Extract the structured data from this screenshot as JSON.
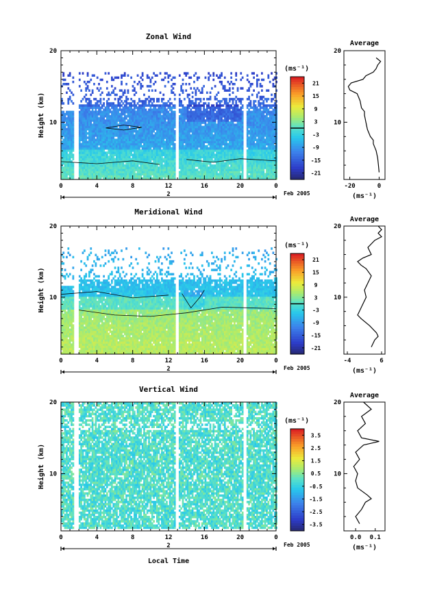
{
  "date_label": "Feb 2005",
  "day_label": "2",
  "xlabel": "Local Time",
  "chart_data": [
    {
      "type": "heatmap",
      "title": "Zonal Wind",
      "ylabel": "Height (km)",
      "xlim": [
        0,
        24
      ],
      "ylim": [
        2,
        20
      ],
      "x_ticks": [
        "0",
        "4",
        "8",
        "12",
        "16",
        "20",
        "0"
      ],
      "y_ticks": [
        "10",
        "20"
      ],
      "data_gaps_hours": [
        [
          1.4,
          1.9
        ],
        [
          12.7,
          13.1
        ],
        [
          20.3,
          20.6
        ]
      ],
      "colorbar": {
        "unit": "(ms⁻¹)",
        "ticks": [
          "21",
          "15",
          "9",
          "3",
          "-3",
          "-9",
          "-15",
          "-21"
        ],
        "range": [
          -24,
          24
        ],
        "marker": 0
      },
      "average": {
        "title": "Average",
        "xlabel": "(ms⁻¹)",
        "x_ticks": [
          "-20",
          "0"
        ],
        "xlim": [
          -24,
          4
        ],
        "y_ticks": [
          "10",
          "20"
        ],
        "profile": [
          [
            3,
            0
          ],
          [
            4,
            -0.5
          ],
          [
            5,
            -1
          ],
          [
            6,
            -2
          ],
          [
            7,
            -4
          ],
          [
            7.5,
            -4
          ],
          [
            8,
            -6
          ],
          [
            9,
            -8
          ],
          [
            10,
            -9
          ],
          [
            11,
            -10
          ],
          [
            11.5,
            -10
          ],
          [
            12,
            -12
          ],
          [
            13,
            -13
          ],
          [
            14,
            -15
          ],
          [
            14.5,
            -20
          ],
          [
            15,
            -21
          ],
          [
            15.5,
            -19
          ],
          [
            16,
            -11
          ],
          [
            16.5,
            -9
          ],
          [
            17,
            -4
          ],
          [
            17.5,
            -2
          ],
          [
            18,
            -1
          ],
          [
            18.5,
            1
          ],
          [
            19,
            -2
          ]
        ]
      }
    },
    {
      "type": "heatmap",
      "title": "Meridional Wind",
      "ylabel": "Height (km)",
      "xlim": [
        0,
        24
      ],
      "ylim": [
        2,
        20
      ],
      "x_ticks": [
        "0",
        "4",
        "8",
        "12",
        "16",
        "20",
        "0"
      ],
      "y_ticks": [
        "10",
        "20"
      ],
      "data_gaps_hours": [
        [
          1.4,
          1.9
        ],
        [
          12.7,
          13.1
        ],
        [
          20.3,
          20.6
        ]
      ],
      "colorbar": {
        "unit": "(ms⁻¹)",
        "ticks": [
          "21",
          "15",
          "9",
          "3",
          "-3",
          "-9",
          "-15",
          "-21"
        ],
        "range": [
          -24,
          24
        ],
        "marker": 0
      },
      "average": {
        "title": "Average",
        "xlabel": "(ms⁻¹)",
        "x_ticks": [
          "-4",
          "6"
        ],
        "xlim": [
          -5,
          7
        ],
        "y_ticks": [
          "10",
          "20"
        ],
        "profile": [
          [
            3,
            3
          ],
          [
            4,
            4
          ],
          [
            4.5,
            5
          ],
          [
            5,
            4.5
          ],
          [
            6,
            2.5
          ],
          [
            7,
            0
          ],
          [
            7.5,
            -1
          ],
          [
            8,
            -0.5
          ],
          [
            9,
            0.5
          ],
          [
            10,
            1.5
          ],
          [
            11,
            1
          ],
          [
            12,
            2
          ],
          [
            13,
            3
          ],
          [
            14,
            1.5
          ],
          [
            14.5,
            0
          ],
          [
            15,
            -1
          ],
          [
            15.5,
            0.5
          ],
          [
            16,
            3
          ],
          [
            17,
            2
          ],
          [
            18,
            4
          ],
          [
            18.5,
            6
          ],
          [
            19,
            5
          ],
          [
            19.5,
            6
          ],
          [
            20,
            5
          ]
        ]
      }
    },
    {
      "type": "heatmap",
      "title": "Vertical Wind",
      "ylabel": "Height (km)",
      "xlim": [
        0,
        24
      ],
      "ylim": [
        2,
        20
      ],
      "x_ticks": [
        "0",
        "4",
        "8",
        "12",
        "16",
        "20",
        "0"
      ],
      "y_ticks": [
        "10",
        "20"
      ],
      "data_gaps_hours": [
        [
          1.4,
          1.9
        ],
        [
          12.7,
          13.1
        ],
        [
          20.3,
          20.6
        ]
      ],
      "colorbar": {
        "unit": "(ms⁻¹)",
        "ticks": [
          "3.5",
          "2.5",
          "1.5",
          "0.5",
          "-0.5",
          "-1.5",
          "-2.5",
          "-3.5"
        ],
        "range": [
          -4,
          4
        ]
      },
      "average": {
        "title": "Average",
        "xlabel": "(ms⁻¹)",
        "x_ticks": [
          "0.0",
          "0.1"
        ],
        "xlim": [
          -0.06,
          0.15
        ],
        "y_ticks": [
          "10",
          "20"
        ],
        "profile": [
          [
            3,
            0.02
          ],
          [
            4,
            0.0
          ],
          [
            5,
            0.03
          ],
          [
            6,
            0.05
          ],
          [
            6.5,
            0.08
          ],
          [
            7,
            0.06
          ],
          [
            8,
            0.01
          ],
          [
            9,
            0.0
          ],
          [
            10,
            0.01
          ],
          [
            11,
            -0.01
          ],
          [
            12,
            0.02
          ],
          [
            13,
            0.0
          ],
          [
            14,
            0.04
          ],
          [
            14.5,
            0.12
          ],
          [
            15,
            0.03
          ],
          [
            16,
            0.01
          ],
          [
            17,
            0.05
          ],
          [
            18,
            0.03
          ],
          [
            19,
            0.08
          ],
          [
            20,
            0.04
          ]
        ]
      }
    }
  ]
}
